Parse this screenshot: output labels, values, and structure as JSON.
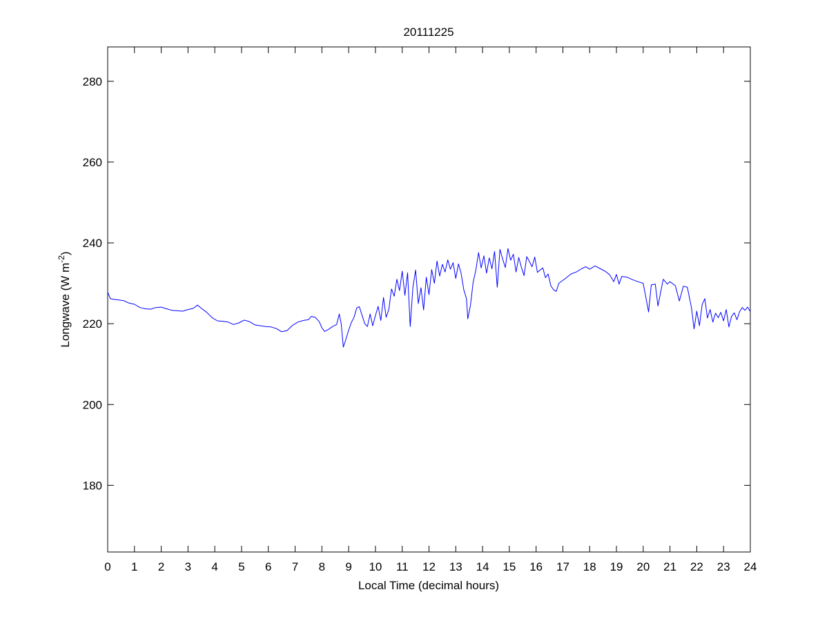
{
  "chart_data": {
    "type": "line",
    "title": "20111225",
    "xlabel": "Local Time (decimal hours)",
    "ylabel": "Longwave (W m",
    "ylabel_superscript": "-2",
    "ylabel_close": ")",
    "xlim": [
      0,
      24
    ],
    "ylim": [
      163.5,
      288.5
    ],
    "x_ticks": [
      0,
      1,
      2,
      3,
      4,
      5,
      6,
      7,
      8,
      9,
      10,
      11,
      12,
      13,
      14,
      15,
      16,
      17,
      18,
      19,
      20,
      21,
      22,
      23,
      24
    ],
    "y_ticks": [
      180,
      200,
      220,
      240,
      260,
      280
    ],
    "grid": false,
    "series": [
      {
        "color": "#0000ff",
        "points": [
          [
            0.0,
            227.8
          ],
          [
            0.1,
            226.2
          ],
          [
            0.25,
            226.0
          ],
          [
            0.4,
            225.9
          ],
          [
            0.6,
            225.7
          ],
          [
            0.8,
            225.1
          ],
          [
            1.0,
            224.8
          ],
          [
            1.2,
            224.0
          ],
          [
            1.4,
            223.7
          ],
          [
            1.6,
            223.6
          ],
          [
            1.8,
            224.0
          ],
          [
            2.0,
            224.1
          ],
          [
            2.2,
            223.7
          ],
          [
            2.4,
            223.3
          ],
          [
            2.6,
            223.2
          ],
          [
            2.8,
            223.1
          ],
          [
            3.0,
            223.5
          ],
          [
            3.2,
            223.8
          ],
          [
            3.35,
            224.6
          ],
          [
            3.5,
            223.8
          ],
          [
            3.7,
            222.8
          ],
          [
            3.9,
            221.5
          ],
          [
            4.1,
            220.7
          ],
          [
            4.3,
            220.6
          ],
          [
            4.5,
            220.4
          ],
          [
            4.7,
            219.8
          ],
          [
            4.9,
            220.2
          ],
          [
            5.1,
            220.9
          ],
          [
            5.3,
            220.5
          ],
          [
            5.5,
            219.7
          ],
          [
            5.7,
            219.5
          ],
          [
            5.9,
            219.3
          ],
          [
            6.1,
            219.2
          ],
          [
            6.3,
            218.8
          ],
          [
            6.5,
            218.0
          ],
          [
            6.7,
            218.3
          ],
          [
            6.9,
            219.6
          ],
          [
            7.1,
            220.4
          ],
          [
            7.3,
            220.8
          ],
          [
            7.5,
            221.0
          ],
          [
            7.6,
            221.8
          ],
          [
            7.75,
            221.6
          ],
          [
            7.9,
            220.5
          ],
          [
            8.0,
            219.0
          ],
          [
            8.1,
            218.1
          ],
          [
            8.25,
            218.6
          ],
          [
            8.4,
            219.3
          ],
          [
            8.55,
            219.8
          ],
          [
            8.65,
            222.4
          ],
          [
            8.72,
            220.0
          ],
          [
            8.8,
            214.2
          ],
          [
            8.9,
            216.2
          ],
          [
            9.0,
            218.4
          ],
          [
            9.1,
            220.3
          ],
          [
            9.2,
            221.6
          ],
          [
            9.3,
            223.9
          ],
          [
            9.4,
            224.2
          ],
          [
            9.5,
            222.1
          ],
          [
            9.6,
            220.0
          ],
          [
            9.7,
            219.3
          ],
          [
            9.8,
            222.4
          ],
          [
            9.9,
            219.5
          ],
          [
            10.0,
            222.0
          ],
          [
            10.1,
            224.3
          ],
          [
            10.2,
            220.8
          ],
          [
            10.3,
            226.5
          ],
          [
            10.4,
            221.6
          ],
          [
            10.5,
            223.5
          ],
          [
            10.6,
            228.6
          ],
          [
            10.7,
            226.8
          ],
          [
            10.8,
            231.0
          ],
          [
            10.9,
            228.2
          ],
          [
            11.0,
            233.0
          ],
          [
            11.1,
            227.0
          ],
          [
            11.2,
            232.6
          ],
          [
            11.3,
            219.3
          ],
          [
            11.4,
            229.0
          ],
          [
            11.5,
            233.3
          ],
          [
            11.6,
            225.0
          ],
          [
            11.7,
            228.9
          ],
          [
            11.8,
            223.4
          ],
          [
            11.9,
            231.5
          ],
          [
            12.0,
            227.2
          ],
          [
            12.1,
            233.4
          ],
          [
            12.2,
            230.0
          ],
          [
            12.3,
            235.5
          ],
          [
            12.4,
            231.8
          ],
          [
            12.5,
            234.7
          ],
          [
            12.6,
            232.8
          ],
          [
            12.7,
            235.8
          ],
          [
            12.8,
            233.5
          ],
          [
            12.9,
            235.1
          ],
          [
            13.0,
            231.2
          ],
          [
            13.1,
            234.8
          ],
          [
            13.2,
            232.5
          ],
          [
            13.3,
            228.4
          ],
          [
            13.4,
            226.2
          ],
          [
            13.45,
            221.2
          ],
          [
            13.55,
            224.6
          ],
          [
            13.65,
            230.3
          ],
          [
            13.75,
            233.3
          ],
          [
            13.85,
            237.6
          ],
          [
            13.95,
            233.8
          ],
          [
            14.05,
            236.8
          ],
          [
            14.15,
            232.5
          ],
          [
            14.25,
            236.3
          ],
          [
            14.35,
            233.6
          ],
          [
            14.45,
            237.9
          ],
          [
            14.55,
            229.0
          ],
          [
            14.65,
            238.4
          ],
          [
            14.75,
            236.0
          ],
          [
            14.85,
            233.9
          ],
          [
            14.95,
            238.6
          ],
          [
            15.05,
            235.7
          ],
          [
            15.15,
            237.2
          ],
          [
            15.25,
            232.8
          ],
          [
            15.35,
            236.4
          ],
          [
            15.45,
            234.0
          ],
          [
            15.55,
            231.9
          ],
          [
            15.65,
            236.6
          ],
          [
            15.75,
            235.4
          ],
          [
            15.85,
            234.1
          ],
          [
            15.95,
            236.5
          ],
          [
            16.05,
            232.7
          ],
          [
            16.15,
            233.3
          ],
          [
            16.25,
            233.8
          ],
          [
            16.35,
            231.4
          ],
          [
            16.45,
            232.3
          ],
          [
            16.55,
            229.4
          ],
          [
            16.65,
            228.4
          ],
          [
            16.75,
            228.0
          ],
          [
            16.85,
            230.0
          ],
          [
            16.95,
            230.5
          ],
          [
            17.1,
            231.2
          ],
          [
            17.3,
            232.3
          ],
          [
            17.5,
            232.8
          ],
          [
            17.7,
            233.6
          ],
          [
            17.85,
            234.1
          ],
          [
            18.0,
            233.5
          ],
          [
            18.2,
            234.3
          ],
          [
            18.4,
            233.6
          ],
          [
            18.6,
            232.9
          ],
          [
            18.75,
            232.1
          ],
          [
            18.9,
            230.4
          ],
          [
            19.0,
            232.2
          ],
          [
            19.1,
            229.8
          ],
          [
            19.2,
            231.7
          ],
          [
            19.4,
            231.5
          ],
          [
            19.6,
            230.9
          ],
          [
            19.8,
            230.4
          ],
          [
            20.0,
            230.0
          ],
          [
            20.1,
            226.5
          ],
          [
            20.2,
            222.9
          ],
          [
            20.3,
            229.6
          ],
          [
            20.45,
            229.8
          ],
          [
            20.55,
            224.4
          ],
          [
            20.65,
            227.7
          ],
          [
            20.75,
            231.0
          ],
          [
            20.9,
            229.8
          ],
          [
            21.0,
            230.4
          ],
          [
            21.2,
            229.4
          ],
          [
            21.35,
            225.6
          ],
          [
            21.5,
            229.3
          ],
          [
            21.65,
            229.0
          ],
          [
            21.8,
            224.0
          ],
          [
            21.9,
            218.7
          ],
          [
            22.0,
            223.1
          ],
          [
            22.1,
            219.5
          ],
          [
            22.2,
            224.7
          ],
          [
            22.3,
            226.2
          ],
          [
            22.4,
            221.4
          ],
          [
            22.5,
            223.5
          ],
          [
            22.6,
            220.4
          ],
          [
            22.7,
            222.6
          ],
          [
            22.8,
            221.5
          ],
          [
            22.9,
            222.8
          ],
          [
            23.0,
            220.7
          ],
          [
            23.1,
            223.5
          ],
          [
            23.2,
            219.2
          ],
          [
            23.3,
            221.8
          ],
          [
            23.4,
            222.7
          ],
          [
            23.5,
            221.0
          ],
          [
            23.6,
            223.0
          ],
          [
            23.7,
            224.0
          ],
          [
            23.8,
            223.3
          ],
          [
            23.9,
            224.1
          ],
          [
            24.0,
            223.0
          ]
        ]
      }
    ]
  }
}
